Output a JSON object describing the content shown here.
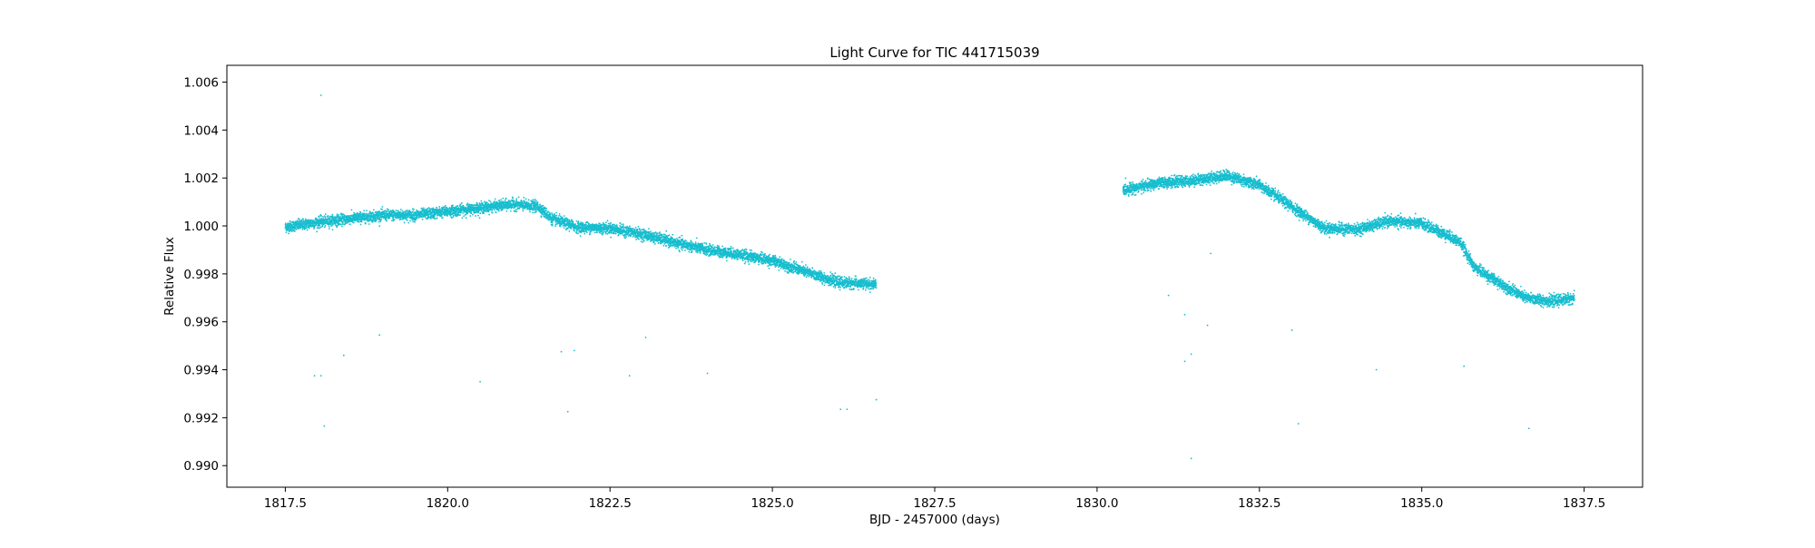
{
  "chart_data": {
    "type": "scatter",
    "title": "Light Curve for TIC 441715039",
    "xlabel": "BJD - 2457000 (days)",
    "ylabel": "Relative Flux",
    "xlim": [
      1816.6,
      1838.4
    ],
    "ylim": [
      0.9891,
      1.0067
    ],
    "xticks": [
      1817.5,
      1820.0,
      1822.5,
      1825.0,
      1827.5,
      1830.0,
      1832.5,
      1835.0,
      1837.5
    ],
    "xtick_labels": [
      "1817.5",
      "1820.0",
      "1822.5",
      "1825.0",
      "1827.5",
      "1830.0",
      "1832.5",
      "1835.0",
      "1837.5"
    ],
    "yticks": [
      0.99,
      0.992,
      0.994,
      0.996,
      0.998,
      1.0,
      1.002,
      1.004,
      1.006
    ],
    "ytick_labels": [
      "0.990",
      "0.992",
      "0.994",
      "0.996",
      "0.998",
      "1.000",
      "1.002",
      "1.004",
      "1.006"
    ],
    "grid": false,
    "legend": "none",
    "marker_color": "#17becf",
    "series": [
      {
        "segments": [
          {
            "x_start": 1817.5,
            "x_end": 1826.6,
            "scatter": 0.00022,
            "trend": [
              [
                1817.5,
                0.99995
              ],
              [
                1818.0,
                1.00015
              ],
              [
                1818.5,
                1.0003
              ],
              [
                1819.0,
                1.00045
              ],
              [
                1819.5,
                1.00045
              ],
              [
                1820.0,
                1.0006
              ],
              [
                1820.5,
                1.00075
              ],
              [
                1821.0,
                1.0009
              ],
              [
                1821.4,
                1.0008
              ],
              [
                1821.6,
                1.0003
              ],
              [
                1822.0,
                0.99995
              ],
              [
                1822.5,
                0.9999
              ],
              [
                1823.0,
                0.99965
              ],
              [
                1823.5,
                0.9993
              ],
              [
                1824.0,
                0.999
              ],
              [
                1824.5,
                0.9988
              ],
              [
                1825.0,
                0.99855
              ],
              [
                1825.5,
                0.9981
              ],
              [
                1826.0,
                0.99765
              ],
              [
                1826.6,
                0.99755
              ]
            ]
          },
          {
            "x_start": 1830.4,
            "x_end": 1837.35,
            "scatter": 0.00022,
            "trend": [
              [
                1830.4,
                1.0015
              ],
              [
                1831.0,
                1.0018
              ],
              [
                1831.5,
                1.0019
              ],
              [
                1832.0,
                1.0021
              ],
              [
                1832.5,
                1.0017
              ],
              [
                1833.0,
                1.0008
              ],
              [
                1833.5,
                0.9999
              ],
              [
                1834.0,
                0.99985
              ],
              [
                1834.5,
                1.0002
              ],
              [
                1835.0,
                1.0001
              ],
              [
                1835.4,
                0.9996
              ],
              [
                1835.6,
                0.9993
              ],
              [
                1835.8,
                0.9983
              ],
              [
                1836.2,
                0.9976
              ],
              [
                1836.6,
                0.997
              ],
              [
                1837.0,
                0.99685
              ],
              [
                1837.35,
                0.997
              ]
            ]
          }
        ],
        "outliers": [
          [
            1818.05,
            1.00545
          ],
          [
            1817.95,
            0.99375
          ],
          [
            1818.05,
            0.99375
          ],
          [
            1818.1,
            0.99165
          ],
          [
            1818.4,
            0.9946
          ],
          [
            1818.95,
            0.99545
          ],
          [
            1820.5,
            0.9935
          ],
          [
            1821.75,
            0.99475
          ],
          [
            1821.85,
            0.99225
          ],
          [
            1821.95,
            0.9948
          ],
          [
            1822.8,
            0.99375
          ],
          [
            1823.05,
            0.99535
          ],
          [
            1824.0,
            0.99385
          ],
          [
            1826.05,
            0.99235
          ],
          [
            1826.15,
            0.99235
          ],
          [
            1826.6,
            0.99275
          ],
          [
            1831.1,
            0.9971
          ],
          [
            1831.35,
            0.9963
          ],
          [
            1831.35,
            0.99435
          ],
          [
            1831.45,
            0.99465
          ],
          [
            1831.45,
            0.9903
          ],
          [
            1831.7,
            0.99585
          ],
          [
            1831.75,
            0.99885
          ],
          [
            1833.0,
            0.99565
          ],
          [
            1833.1,
            0.99175
          ],
          [
            1834.3,
            0.994
          ],
          [
            1835.65,
            0.99415
          ],
          [
            1836.65,
            0.99155
          ]
        ]
      }
    ]
  }
}
